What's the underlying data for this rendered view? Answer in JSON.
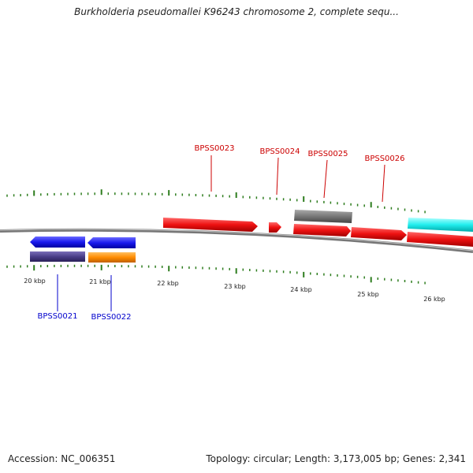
{
  "title": "Burkholderia pseudomallei K96243 chromosome 2, complete sequ...",
  "accession": "Accession: NC_006351",
  "topology": "Topology: circular; Length: 3,173,005 bp; Genes: 2,341",
  "colors": {
    "backbone": "#888888",
    "tick": "#2e7d1e",
    "label_red": "#cc0000",
    "label_blue": "#0000cc",
    "gene_red": "#ee1111",
    "gene_blue": "#1a1aee",
    "gene_gray": "#777777",
    "gene_cyan": "#22eeee",
    "gene_purple": "#4a3e88",
    "gene_orange": "#ff8c00"
  },
  "scale_labels": [
    "20 kbp",
    "21 kbp",
    "22 kbp",
    "23 kbp",
    "24 kbp",
    "25 kbp",
    "26 kbp"
  ],
  "gene_labels": [
    {
      "text": "BPSS0021",
      "color": "blue"
    },
    {
      "text": "BPSS0022",
      "color": "blue"
    },
    {
      "text": "BPSS0023",
      "color": "red"
    },
    {
      "text": "BPSS0024",
      "color": "red"
    },
    {
      "text": "BPSS0025",
      "color": "red"
    },
    {
      "text": "BPSS0026",
      "color": "red"
    }
  ]
}
